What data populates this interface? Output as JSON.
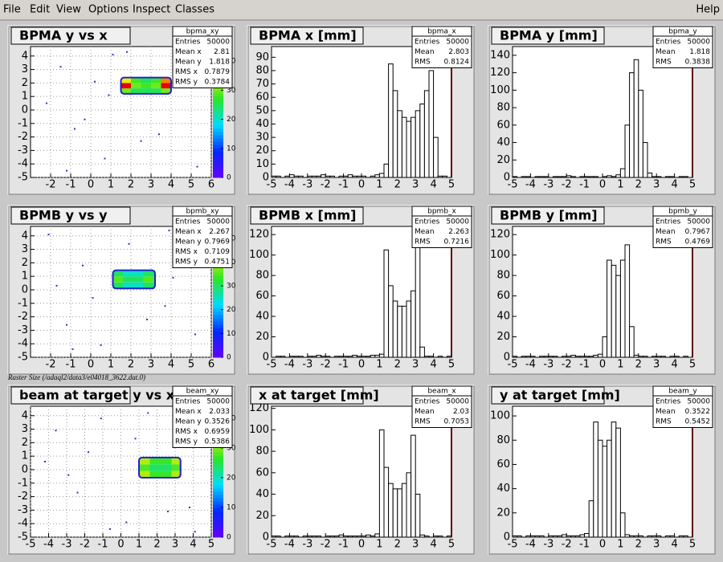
{
  "menu": {
    "left": [
      "File",
      "Edit",
      "View",
      "Options",
      "Inspect",
      "Classes"
    ],
    "right": "Help"
  },
  "caption": "Raster Size (/adaql2/data3/e04018_3622.dat.0)",
  "panels": [
    {
      "type": "heatmap",
      "title": "BPMA y vs x",
      "stats": {
        "name": "bpma_xy",
        "rows": [
          [
            "Entries",
            50000
          ],
          [
            "Mean x",
            2.81
          ],
          [
            "Mean y",
            1.818
          ],
          [
            "RMS x",
            0.7879
          ],
          [
            "RMS y",
            0.3784
          ]
        ]
      },
      "xlim": [
        -3,
        6
      ],
      "xticks": [
        -2,
        -1,
        0,
        1,
        2,
        3,
        4,
        5,
        6
      ],
      "ylim": [
        -5,
        4.7
      ],
      "yticks": [
        -5,
        -4,
        -3,
        -2,
        -1,
        0,
        1,
        2,
        3,
        4
      ],
      "grid": true,
      "x_edges": [
        1.5,
        2,
        2.5,
        3,
        3.5,
        4
      ],
      "y_edges": [
        1.2,
        1.6,
        2,
        2.4
      ],
      "z": [
        [
          30,
          25,
          25,
          25,
          30
        ],
        [
          45,
          30,
          28,
          30,
          45
        ],
        [
          35,
          28,
          25,
          28,
          40
        ]
      ],
      "zlim": [
        0,
        45
      ],
      "zticks": [
        0,
        10,
        20,
        30,
        40
      ],
      "noise": {
        "x": [
          -1.5,
          -0.8,
          0.2,
          0.7,
          -2.2,
          1.1,
          2.5,
          4.8,
          5.3,
          -0.3,
          0.9,
          3.4,
          1.8,
          -1.2
        ],
        "y": [
          3.2,
          -1.4,
          2.1,
          -3.6,
          0.5,
          4.1,
          -2.3,
          3.6,
          -4.2,
          -0.7,
          1.1,
          -1.8,
          4.3,
          -4.5
        ]
      }
    },
    {
      "type": "histogram",
      "title": "BPMA x [mm]",
      "stats": {
        "name": "bpma_x",
        "rows": [
          [
            "Entries",
            50000
          ],
          [
            "Mean",
            2.803
          ],
          [
            "RMS",
            0.8124
          ]
        ]
      },
      "xlim": [
        -5,
        5
      ],
      "xticks": [
        -5,
        -4,
        -3,
        -2,
        -1,
        0,
        1,
        2,
        3,
        4,
        5
      ],
      "ylim": [
        0,
        98
      ],
      "yticks": [
        0,
        10,
        20,
        30,
        40,
        50,
        60,
        70,
        80,
        90
      ],
      "bins": [
        -5,
        -4.75,
        -4.5,
        -4.25,
        -4,
        -3.75,
        -3.5,
        -3.25,
        -3,
        -2.75,
        -2.5,
        -2.25,
        -2,
        -1.75,
        -1.5,
        -1.25,
        -1,
        -0.75,
        -0.5,
        -0.25,
        0,
        0.25,
        0.5,
        0.75,
        1,
        1.25,
        1.5,
        1.75,
        2,
        2.25,
        2.5,
        2.75,
        3,
        3.25,
        3.5,
        3.75,
        4,
        4.25,
        4.5,
        4.75,
        5
      ],
      "counts": [
        1,
        1,
        0,
        1,
        2,
        1,
        1,
        0,
        1,
        1,
        1,
        2,
        1,
        1,
        0,
        1,
        1,
        2,
        1,
        1,
        1,
        0,
        1,
        2,
        3,
        10,
        85,
        65,
        50,
        45,
        42,
        45,
        50,
        55,
        65,
        80,
        30,
        1,
        1,
        0
      ]
    },
    {
      "type": "histogram",
      "title": "BPMA y [mm]",
      "stats": {
        "name": "bpma_y",
        "rows": [
          [
            "Entries",
            50000
          ],
          [
            "Mean",
            1.818
          ],
          [
            "RMS",
            0.3838
          ]
        ]
      },
      "xlim": [
        -5,
        5
      ],
      "xticks": [
        -5,
        -4,
        -3,
        -2,
        -1,
        0,
        1,
        2,
        3,
        4,
        5
      ],
      "ylim": [
        0,
        150
      ],
      "yticks": [
        0,
        20,
        40,
        60,
        80,
        100,
        120,
        140
      ],
      "bins": [
        -5,
        -4.75,
        -4.5,
        -4.25,
        -4,
        -3.75,
        -3.5,
        -3.25,
        -3,
        -2.75,
        -2.5,
        -2.25,
        -2,
        -1.75,
        -1.5,
        -1.25,
        -1,
        -0.75,
        -0.5,
        -0.25,
        0,
        0.25,
        0.5,
        0.75,
        1,
        1.25,
        1.5,
        1.75,
        2,
        2.25,
        2.5,
        2.75,
        3,
        3.25,
        3.5,
        3.75,
        4,
        4.25,
        4.5,
        4.75,
        5
      ],
      "counts": [
        1,
        0,
        1,
        1,
        0,
        1,
        1,
        1,
        0,
        1,
        1,
        1,
        2,
        1,
        0,
        1,
        1,
        1,
        1,
        0,
        1,
        2,
        1,
        3,
        10,
        60,
        120,
        135,
        100,
        40,
        5,
        1,
        1,
        0,
        1,
        1,
        0,
        1,
        1,
        0
      ]
    },
    {
      "type": "heatmap",
      "title": "BPMB y vs y",
      "stats": {
        "name": "bpmb_xy",
        "rows": [
          [
            "Entries",
            50000
          ],
          [
            "Mean x",
            2.267
          ],
          [
            "Mean y",
            0.7969
          ],
          [
            "RMS x",
            0.7109
          ],
          [
            "RMS y",
            0.4751
          ]
        ]
      },
      "xlim": [
        -3,
        6
      ],
      "xticks": [
        -2,
        -1,
        0,
        1,
        2,
        3,
        4,
        5,
        6
      ],
      "ylim": [
        -5,
        4.7
      ],
      "yticks": [
        -5,
        -4,
        -3,
        -2,
        -1,
        0,
        1,
        2,
        3,
        4
      ],
      "grid": true,
      "x_edges": [
        1.1,
        1.6,
        2.1,
        2.6,
        3.2
      ],
      "y_edges": [
        0.1,
        0.55,
        1,
        1.45
      ],
      "z": [
        [
          30,
          25,
          25,
          30
        ],
        [
          35,
          30,
          30,
          35
        ],
        [
          30,
          25,
          25,
          30
        ]
      ],
      "zlim": [
        0,
        55
      ],
      "zticks": [
        0,
        10,
        20,
        30,
        40,
        50
      ],
      "noise": {
        "x": [
          -2.1,
          -1.2,
          -0.4,
          0.5,
          1.9,
          3.7,
          4.6,
          5.2,
          -1.7,
          0.1,
          2.8,
          3.9,
          -0.9,
          4.1
        ],
        "y": [
          4.1,
          -2.6,
          1.8,
          -4.1,
          3.4,
          -1.2,
          2.7,
          -3.3,
          0.3,
          -0.6,
          -2.2,
          4.4,
          -4.4,
          0.9
        ]
      }
    },
    {
      "type": "histogram",
      "title": "BPMB x [mm]",
      "stats": {
        "name": "bpmb_x",
        "rows": [
          [
            "Entries",
            50000
          ],
          [
            "Mean",
            2.263
          ],
          [
            "RMS",
            0.7216
          ]
        ]
      },
      "xlim": [
        -5,
        5
      ],
      "xticks": [
        -5,
        -4,
        -3,
        -2,
        -1,
        0,
        1,
        2,
        3,
        4,
        5
      ],
      "ylim": [
        0,
        128
      ],
      "yticks": [
        0,
        20,
        40,
        60,
        80,
        100,
        120
      ],
      "bins": [
        -5,
        -4.75,
        -4.5,
        -4.25,
        -4,
        -3.75,
        -3.5,
        -3.25,
        -3,
        -2.75,
        -2.5,
        -2.25,
        -2,
        -1.75,
        -1.5,
        -1.25,
        -1,
        -0.75,
        -0.5,
        -0.25,
        0,
        0.25,
        0.5,
        0.75,
        1,
        1.25,
        1.5,
        1.75,
        2,
        2.25,
        2.5,
        2.75,
        3,
        3.25,
        3.5,
        3.75,
        4,
        4.25,
        4.5,
        4.75,
        5
      ],
      "counts": [
        0,
        1,
        1,
        0,
        1,
        1,
        1,
        0,
        1,
        1,
        2,
        1,
        1,
        0,
        1,
        1,
        1,
        1,
        2,
        1,
        1,
        1,
        2,
        2,
        3,
        105,
        70,
        55,
        50,
        50,
        55,
        65,
        110,
        10,
        1,
        1,
        0,
        1,
        0,
        1
      ]
    },
    {
      "type": "histogram",
      "title": "BPMB y [mm]",
      "stats": {
        "name": "bpmb_y",
        "rows": [
          [
            "Entries",
            50000
          ],
          [
            "Mean",
            0.7967
          ],
          [
            "RMS",
            0.4769
          ]
        ]
      },
      "xlim": [
        -5,
        5
      ],
      "xticks": [
        -5,
        -4,
        -3,
        -2,
        -1,
        0,
        1,
        2,
        3,
        4,
        5
      ],
      "ylim": [
        0,
        128
      ],
      "yticks": [
        0,
        20,
        40,
        60,
        80,
        100,
        120
      ],
      "bins": [
        -5,
        -4.75,
        -4.5,
        -4.25,
        -4,
        -3.75,
        -3.5,
        -3.25,
        -3,
        -2.75,
        -2.5,
        -2.25,
        -2,
        -1.75,
        -1.5,
        -1.25,
        -1,
        -0.75,
        -0.5,
        -0.25,
        0,
        0.25,
        0.5,
        0.75,
        1,
        1.25,
        1.5,
        1.75,
        2,
        2.25,
        2.5,
        2.75,
        3,
        3.25,
        3.5,
        3.75,
        4,
        4.25,
        4.5,
        4.75,
        5
      ],
      "counts": [
        1,
        0,
        1,
        1,
        1,
        0,
        1,
        1,
        1,
        1,
        0,
        1,
        1,
        2,
        1,
        1,
        1,
        1,
        2,
        3,
        20,
        95,
        90,
        80,
        95,
        110,
        30,
        2,
        1,
        1,
        0,
        1,
        1,
        1,
        0,
        1,
        1,
        0,
        1,
        0
      ]
    },
    {
      "type": "heatmap",
      "title": "beam at target y vs x",
      "stats": {
        "name": "beam_xy",
        "rows": [
          [
            "Entries",
            50000
          ],
          [
            "Mean x",
            2.033
          ],
          [
            "Mean y",
            0.3526
          ],
          [
            "RMS x",
            0.6959
          ],
          [
            "RMS y",
            0.5386
          ]
        ]
      },
      "xlim": [
        -5,
        5
      ],
      "xticks": [
        -5,
        -4,
        -3,
        -2,
        -1,
        0,
        1,
        2,
        3,
        4,
        5
      ],
      "ylim": [
        -5,
        4.7
      ],
      "yticks": [
        -5,
        -4,
        -3,
        -2,
        -1,
        0,
        1,
        2,
        3,
        4
      ],
      "grid": true,
      "x_edges": [
        1,
        1.6,
        2.2,
        2.8,
        3.3
      ],
      "y_edges": [
        -0.6,
        -0.1,
        0.4,
        0.9
      ],
      "z": [
        [
          32,
          27,
          27,
          32
        ],
        [
          28,
          24,
          24,
          28
        ],
        [
          32,
          27,
          27,
          32
        ]
      ],
      "zlim": [
        0,
        44
      ],
      "zticks": [
        0,
        10,
        20,
        30,
        40
      ],
      "noise": {
        "x": [
          -3.6,
          -2.4,
          -1.1,
          0.3,
          -4.2,
          1.5,
          3.8,
          4.4,
          -0.6,
          2.6,
          -2.9,
          0.8,
          4.1,
          -1.8
        ],
        "y": [
          2.9,
          -1.7,
          3.8,
          -3.9,
          0.6,
          4.2,
          -2.8,
          1.9,
          -4.4,
          -3.1,
          -0.4,
          2.3,
          -4.6,
          1.3
        ]
      }
    },
    {
      "type": "histogram",
      "title": "x at target [mm]",
      "stats": {
        "name": "beam_x",
        "rows": [
          [
            "Entries",
            50000
          ],
          [
            "Mean",
            2.03
          ],
          [
            "RMS",
            0.7053
          ]
        ]
      },
      "xlim": [
        -5,
        5
      ],
      "xticks": [
        -5,
        -4,
        -3,
        -2,
        -1,
        0,
        1,
        2,
        3,
        4,
        5
      ],
      "ylim": [
        0,
        122
      ],
      "yticks": [
        0,
        20,
        40,
        60,
        80,
        100,
        120
      ],
      "bins": [
        -5,
        -4.75,
        -4.5,
        -4.25,
        -4,
        -3.75,
        -3.5,
        -3.25,
        -3,
        -2.75,
        -2.5,
        -2.25,
        -2,
        -1.75,
        -1.5,
        -1.25,
        -1,
        -0.75,
        -0.5,
        -0.25,
        0,
        0.25,
        0.5,
        0.75,
        1,
        1.25,
        1.5,
        1.75,
        2,
        2.25,
        2.5,
        2.75,
        3,
        3.25,
        3.5,
        3.75,
        4,
        4.25,
        4.5,
        4.75,
        5
      ],
      "counts": [
        1,
        1,
        0,
        1,
        1,
        1,
        0,
        1,
        1,
        1,
        1,
        0,
        1,
        1,
        1,
        2,
        1,
        1,
        1,
        1,
        1,
        2,
        1,
        3,
        100,
        65,
        50,
        45,
        45,
        50,
        60,
        95,
        40,
        2,
        1,
        0,
        1,
        1,
        0,
        1
      ]
    },
    {
      "type": "histogram",
      "title": "y at target [mm]",
      "stats": {
        "name": "beam_y",
        "rows": [
          [
            "Entries",
            50000
          ],
          [
            "Mean",
            0.3522
          ],
          [
            "RMS",
            0.5452
          ]
        ]
      },
      "xlim": [
        -5,
        5
      ],
      "xticks": [
        -5,
        -4,
        -3,
        -2,
        -1,
        0,
        1,
        2,
        3,
        4,
        5
      ],
      "ylim": [
        0,
        108
      ],
      "yticks": [
        0,
        20,
        40,
        60,
        80,
        100
      ],
      "bins": [
        -5,
        -4.75,
        -4.5,
        -4.25,
        -4,
        -3.75,
        -3.5,
        -3.25,
        -3,
        -2.75,
        -2.5,
        -2.25,
        -2,
        -1.75,
        -1.5,
        -1.25,
        -1,
        -0.75,
        -0.5,
        -0.25,
        0,
        0.25,
        0.5,
        0.75,
        1,
        1.25,
        1.5,
        1.75,
        2,
        2.25,
        2.5,
        2.75,
        3,
        3.25,
        3.5,
        3.75,
        4,
        4.25,
        4.5,
        4.75,
        5
      ],
      "counts": [
        1,
        1,
        0,
        1,
        1,
        1,
        1,
        0,
        1,
        1,
        1,
        2,
        1,
        1,
        1,
        2,
        3,
        30,
        95,
        80,
        75,
        80,
        95,
        90,
        20,
        2,
        1,
        1,
        1,
        0,
        1,
        1,
        1,
        0,
        1,
        1,
        0,
        1,
        1,
        0
      ]
    }
  ]
}
